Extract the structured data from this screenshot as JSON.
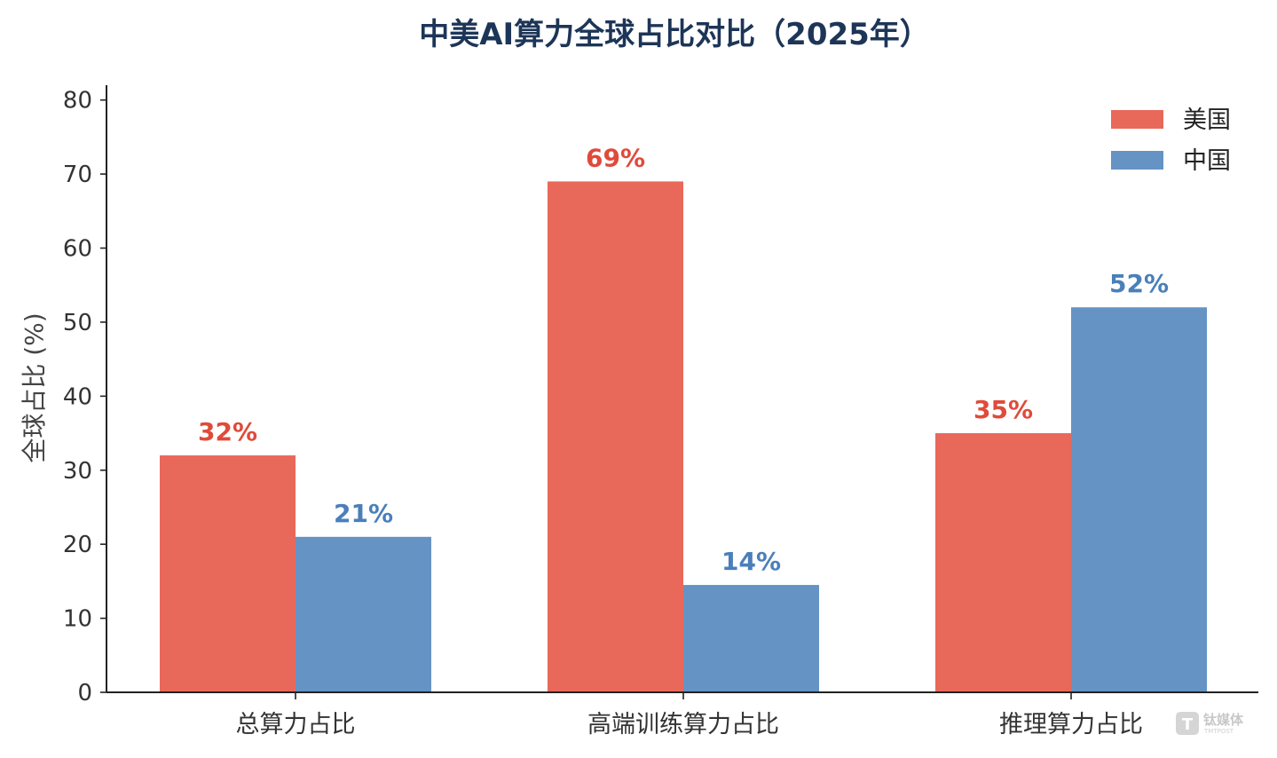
{
  "chart_data": {
    "type": "bar",
    "title": "中美AI算力全球占比对比（2025年）",
    "ylabel": "全球占比 (%)",
    "xlabel": "",
    "categories": [
      "总算力占比",
      "高端训练算力占比",
      "推理算力占比"
    ],
    "series": [
      {
        "name": "美国",
        "values": [
          32,
          69,
          35
        ],
        "labels": [
          "32%",
          "69%",
          "35%"
        ],
        "color": "#e8685a"
      },
      {
        "name": "中国",
        "values": [
          21,
          14.5,
          52
        ],
        "labels": [
          "21%",
          "14%",
          "52%"
        ],
        "color": "#6593c4"
      }
    ],
    "ylim": [
      0,
      82
    ],
    "yticks": [
      "0",
      "10",
      "20",
      "30",
      "40",
      "50",
      "60",
      "70",
      "80"
    ],
    "grid": false,
    "legend_position": "top-right"
  },
  "watermark": {
    "logo_text": "钛媒体",
    "sub_text": "TMTPOST"
  }
}
